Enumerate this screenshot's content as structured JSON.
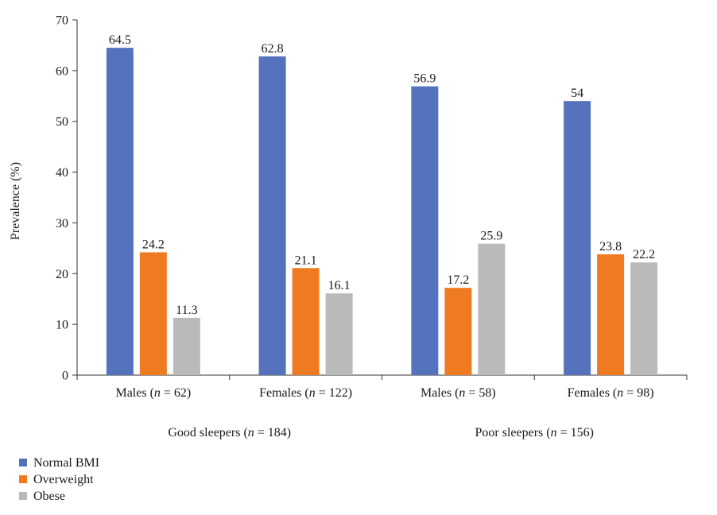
{
  "chart_data": {
    "type": "bar",
    "title": "",
    "ylabel": "Prevalence (%)",
    "xlabel": "",
    "ylim": [
      0,
      70
    ],
    "yticks": [
      0,
      10,
      20,
      30,
      40,
      50,
      60,
      70
    ],
    "grid": false,
    "legend_position": "bottom-left",
    "categories": [
      {
        "pre": "Males (",
        "n": "n",
        "post": " = 62)"
      },
      {
        "pre": "Females (",
        "n": "n",
        "post": " = 122)"
      },
      {
        "pre": "Males (",
        "n": "n",
        "post": " = 58)"
      },
      {
        "pre": "Females (",
        "n": "n",
        "post": " = 98)"
      }
    ],
    "groups": [
      {
        "pre": "Good sleepers (",
        "n": "n",
        "post": " = 184)"
      },
      {
        "pre": "Poor sleepers (",
        "n": "n",
        "post": " = 156)"
      }
    ],
    "series": [
      {
        "name": "Normal BMI",
        "color": "#5572BD",
        "values": [
          64.5,
          62.8,
          56.9,
          54
        ],
        "labels": [
          "64.5",
          "62.8",
          "56.9",
          "54"
        ]
      },
      {
        "name": "Overweight",
        "color": "#EE7B22",
        "values": [
          24.2,
          21.1,
          17.2,
          23.8
        ],
        "labels": [
          "24.2",
          "21.1",
          "17.2",
          "23.8"
        ]
      },
      {
        "name": "Obese",
        "color": "#BABABA",
        "values": [
          11.3,
          16.1,
          25.9,
          22.2
        ],
        "labels": [
          "11.3",
          "16.1",
          "25.9",
          "22.2"
        ]
      }
    ]
  }
}
